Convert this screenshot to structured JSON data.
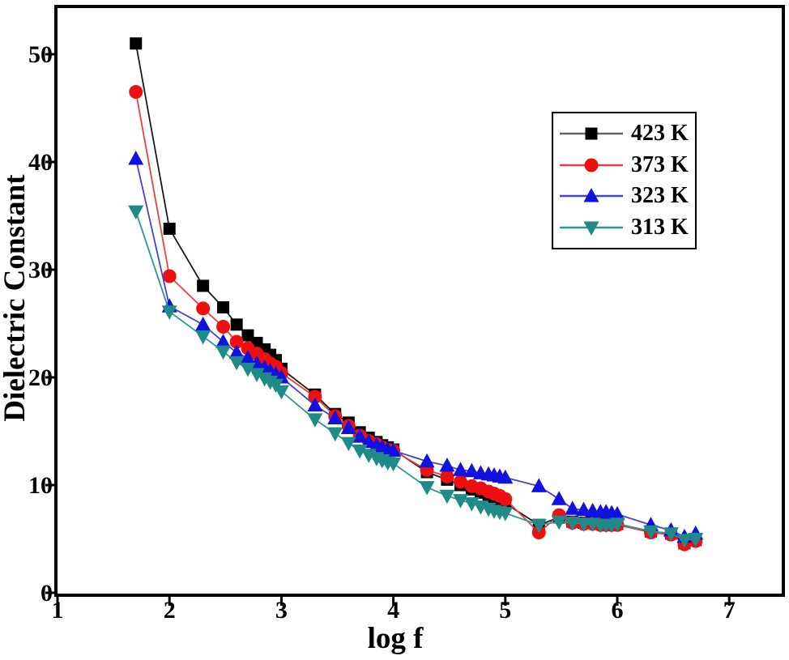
{
  "figure": {
    "background": "#ffffff",
    "frame_color": "#000000"
  },
  "chart_data": {
    "type": "line",
    "title": "",
    "xlabel": "log f",
    "ylabel": "Dielectric Constant",
    "xlim": [
      1,
      7.5
    ],
    "ylim": [
      0,
      54.3
    ],
    "xticks": [
      1,
      2,
      3,
      4,
      5,
      6,
      7
    ],
    "yticks": [
      0,
      10,
      20,
      30,
      40,
      50
    ],
    "grid": false,
    "legend_position": "upper right",
    "x": [
      1.7,
      2.0,
      2.3,
      2.48,
      2.6,
      2.7,
      2.78,
      2.85,
      2.9,
      2.95,
      3.0,
      3.3,
      3.48,
      3.6,
      3.7,
      3.78,
      3.85,
      3.9,
      3.95,
      4.0,
      4.3,
      4.48,
      4.6,
      4.7,
      4.78,
      4.85,
      4.9,
      4.95,
      5.0,
      5.3,
      5.48,
      5.6,
      5.7,
      5.78,
      5.85,
      5.9,
      5.95,
      6.0,
      6.3,
      6.48,
      6.6,
      6.7
    ],
    "series": [
      {
        "name": "423 K",
        "marker": "square",
        "color": "#000000",
        "line_color": "#1a1a1a",
        "legend_line_color": "#666666",
        "values": [
          51.0,
          33.8,
          28.5,
          26.5,
          24.9,
          23.9,
          23.2,
          22.6,
          22.1,
          21.6,
          20.8,
          18.4,
          16.6,
          15.8,
          14.9,
          14.4,
          14.0,
          13.7,
          13.5,
          13.3,
          11.2,
          10.5,
          10.0,
          9.6,
          9.3,
          9.0,
          8.8,
          8.5,
          8.3,
          6.3,
          7.0,
          6.6,
          6.5,
          6.5,
          6.4,
          6.4,
          6.4,
          6.4,
          5.7,
          5.5,
          4.6,
          4.9
        ]
      },
      {
        "name": "373 K",
        "marker": "circle",
        "color": "#ee1010",
        "line_color": "#e84040",
        "legend_line_color": "#e84040",
        "values": [
          46.5,
          29.4,
          26.4,
          24.7,
          23.3,
          22.7,
          22.2,
          21.7,
          21.3,
          21.0,
          20.4,
          18.2,
          16.4,
          15.5,
          14.6,
          14.1,
          13.8,
          13.5,
          13.3,
          13.2,
          11.4,
          10.8,
          10.3,
          9.9,
          9.7,
          9.4,
          9.2,
          9.0,
          8.7,
          5.6,
          7.2,
          6.5,
          6.4,
          6.4,
          6.3,
          6.3,
          6.3,
          6.3,
          5.6,
          5.4,
          4.5,
          4.8
        ]
      },
      {
        "name": "323 K",
        "marker": "triangle-up",
        "color": "#1212e0",
        "line_color": "#4444cc",
        "legend_line_color": "#4444cc",
        "values": [
          40.3,
          26.6,
          24.9,
          23.3,
          22.3,
          21.8,
          21.3,
          20.9,
          20.6,
          20.3,
          20.0,
          17.4,
          16.2,
          15.3,
          14.5,
          14.0,
          13.7,
          13.5,
          13.3,
          13.2,
          12.2,
          11.8,
          11.4,
          11.3,
          11.1,
          11.0,
          10.9,
          10.8,
          10.7,
          9.9,
          8.7,
          7.8,
          7.7,
          7.6,
          7.5,
          7.5,
          7.4,
          7.3,
          6.3,
          5.8,
          5.2,
          5.5
        ]
      },
      {
        "name": "313 K",
        "marker": "triangle-down",
        "color": "#1f8a87",
        "line_color": "#2b9794",
        "legend_line_color": "#2b9794",
        "values": [
          35.4,
          26.1,
          23.8,
          22.4,
          21.4,
          20.8,
          20.3,
          19.9,
          19.6,
          19.3,
          18.7,
          16.1,
          14.8,
          13.9,
          13.2,
          12.8,
          12.5,
          12.3,
          12.1,
          12.0,
          9.8,
          9.0,
          8.6,
          8.3,
          8.0,
          7.8,
          7.6,
          7.5,
          7.4,
          6.3,
          6.6,
          6.5,
          6.4,
          6.4,
          6.3,
          6.3,
          6.3,
          6.4,
          5.7,
          5.5,
          4.9,
          5.0
        ]
      }
    ]
  }
}
